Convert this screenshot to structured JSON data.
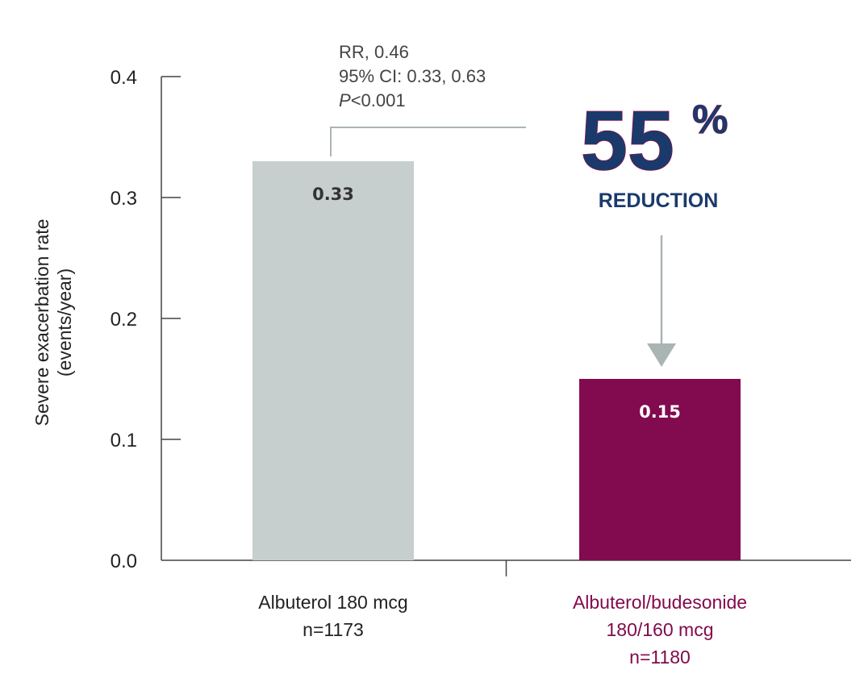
{
  "chart_data": {
    "type": "bar",
    "categories": [
      "Albuterol 180 mcg",
      "Albuterol/budesonide 180/160 mcg"
    ],
    "category_lines": [
      [
        "Albuterol 180 mcg",
        "n=1173"
      ],
      [
        "Albuterol/budesonide",
        "180/160 mcg",
        "n=1180"
      ]
    ],
    "values": [
      0.33,
      0.15
    ],
    "data_labels": [
      "0.33",
      "0.15"
    ],
    "bar_colors": [
      "#c6cfcd",
      "#820a4e"
    ],
    "label_colors": [
      "#333333",
      "#ffffff"
    ],
    "category_label_colors": [
      "#222222",
      "#820a4e"
    ],
    "ylabel_lines": [
      "Severe exacerbation rate",
      "(events/year)"
    ],
    "ylim": [
      0,
      0.4
    ],
    "yticks": [
      "0.0",
      "0.1",
      "0.2",
      "0.3",
      "0.4"
    ],
    "grid": false,
    "annotation": {
      "stats_lines": [
        "RR, 0.46",
        "95% CI: 0.33, 0.63"
      ],
      "p_prefix": "P",
      "p_rest": "<0.001",
      "reduction_value": "55",
      "reduction_symbol": "%",
      "reduction_label": "REDUCTION"
    },
    "colors": {
      "axis": "#444444",
      "bracket": "#a9b5b2",
      "arrow": "#a9b5b2",
      "headline": "#1a3a6b",
      "headline_outline": "#8a1350"
    }
  }
}
